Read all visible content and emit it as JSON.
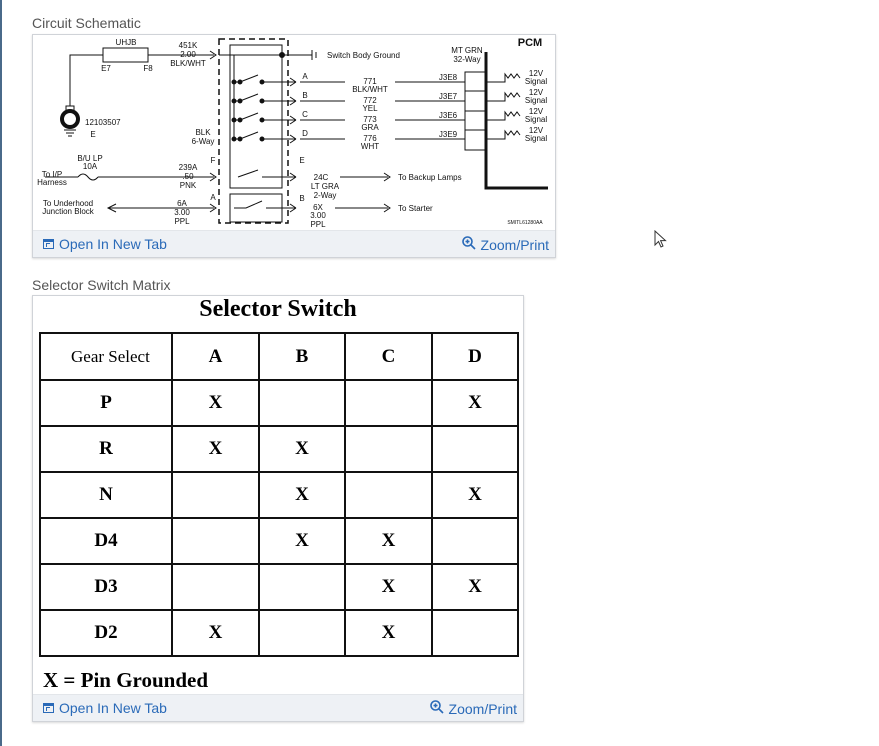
{
  "schematic": {
    "caption": "Circuit Schematic",
    "open_label": "Open In New Tab",
    "zoom_label": "Zoom/Print",
    "labels": {
      "uhjb": "UHJB",
      "e7": "E7",
      "f8": "F8",
      "part": "12103507",
      "e": "E",
      "w451k": "451K",
      "w451k_size": "2.00",
      "w451k_color": "BLK/WHT",
      "ground": "Switch Body Ground",
      "blk": "BLK",
      "six_way": "6-Way",
      "pcm": "PCM",
      "mt_grn": "MT GRN",
      "way32": "32-Way",
      "fuse1": "B/U LP",
      "fuse2": "10A",
      "ip1": "To I/P",
      "ip2": "Harness",
      "w239a": "239A",
      "w239a_size": ".50",
      "w239a_color": "PNK",
      "f": "F",
      "a2": "A",
      "b2": "B",
      "e2": "E",
      "uh1": "To Underhood",
      "uh2": "Junction Block",
      "w6a": "6A",
      "w6a_size": "3.00",
      "w6a_color": "PPL",
      "w24c": "24C",
      "w24c_color": "LT GRA",
      "two_way": "2-Way",
      "backup": "To Backup Lamps",
      "w6x": "6X",
      "w6x_size": "3.00",
      "w6x_color": "PPL",
      "starter": "To Starter",
      "code": "SMITL61280AA"
    },
    "circuits": [
      {
        "pin": "A",
        "wire": "771",
        "color": "BLK/WHT",
        "pcm_pin": "J3E8",
        "signal1": "12V",
        "signal2": "Signal"
      },
      {
        "pin": "B",
        "wire": "772",
        "color": "YEL",
        "pcm_pin": "J3E7",
        "signal1": "12V",
        "signal2": "Signal"
      },
      {
        "pin": "C",
        "wire": "773",
        "color": "GRA",
        "pcm_pin": "J3E6",
        "signal1": "12V",
        "signal2": "Signal"
      },
      {
        "pin": "D",
        "wire": "776",
        "color": "WHT",
        "pcm_pin": "J3E9",
        "signal1": "12V",
        "signal2": "Signal"
      }
    ]
  },
  "matrix": {
    "caption": "Selector Switch Matrix",
    "title": "Selector Switch",
    "header": [
      "Gear Select",
      "A",
      "B",
      "C",
      "D"
    ],
    "rows": [
      [
        "P",
        "X",
        "",
        "",
        "X"
      ],
      [
        "R",
        "X",
        "X",
        "",
        ""
      ],
      [
        "N",
        "",
        "X",
        "",
        "X"
      ],
      [
        "D4",
        "",
        "X",
        "X",
        ""
      ],
      [
        "D3",
        "",
        "",
        "X",
        "X"
      ],
      [
        "D2",
        "X",
        "",
        "X",
        ""
      ]
    ],
    "legend": "X = Pin Grounded",
    "open_label": "Open In New Tab",
    "zoom_label": "Zoom/Print"
  },
  "colors": {
    "link": "#2a6ab8",
    "footer": "#eef1f5"
  }
}
